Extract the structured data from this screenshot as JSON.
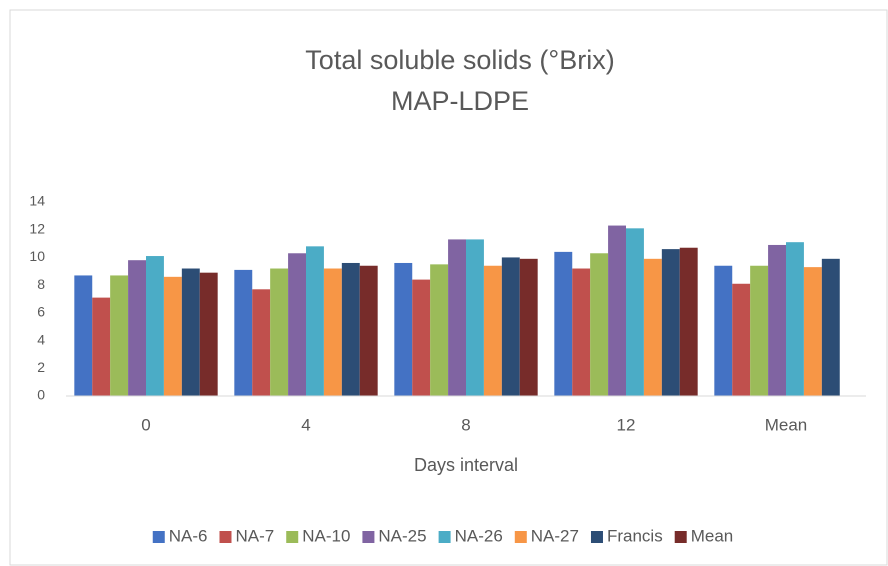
{
  "chart_data": {
    "type": "bar",
    "title": "Total soluble solids (°Brix)",
    "subtitle": "MAP-LDPE",
    "x_label": "Days interval",
    "categories": [
      "0",
      "4",
      "8",
      "12",
      "Mean"
    ],
    "series": [
      {
        "name": "NA-6",
        "color": "#4472C4",
        "values": [
          8.7,
          9.1,
          9.6,
          10.4,
          9.4
        ]
      },
      {
        "name": "NA-7",
        "color": "#C0504D",
        "values": [
          7.1,
          7.7,
          8.4,
          9.2,
          8.1
        ]
      },
      {
        "name": "NA-10",
        "color": "#9BBB59",
        "values": [
          8.7,
          9.2,
          9.5,
          10.3,
          9.4
        ]
      },
      {
        "name": "NA-25",
        "color": "#8064A2",
        "values": [
          9.8,
          10.3,
          11.3,
          12.3,
          10.9
        ]
      },
      {
        "name": "NA-26",
        "color": "#4BACC6",
        "values": [
          10.1,
          10.8,
          11.3,
          12.1,
          11.1
        ]
      },
      {
        "name": "NA-27",
        "color": "#F79646",
        "values": [
          8.6,
          9.2,
          9.4,
          9.9,
          9.3
        ]
      },
      {
        "name": "Francis",
        "color": "#2C4D75",
        "values": [
          9.2,
          9.6,
          10.0,
          10.6,
          9.9
        ]
      },
      {
        "name": "Mean",
        "color": "#772C2A",
        "values": [
          8.9,
          9.4,
          9.9,
          10.7,
          null
        ]
      }
    ],
    "ylim": [
      0,
      14
    ],
    "yticks": [
      0,
      2,
      4,
      6,
      8,
      10,
      12,
      14
    ],
    "grid": false,
    "legend": "bottom"
  }
}
